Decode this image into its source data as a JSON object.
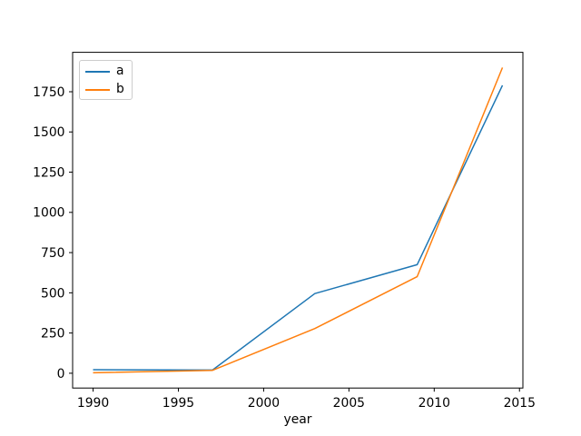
{
  "window": {
    "background": "#ffffff"
  },
  "chart_data": {
    "type": "line",
    "title": "",
    "xlabel": "year",
    "ylabel": "",
    "x": [
      1990,
      1997,
      2003,
      2009,
      2014
    ],
    "series": [
      {
        "name": "a",
        "color": "#1f77b4",
        "values": [
          22,
          20,
          495,
          675,
          1790
        ]
      },
      {
        "name": "b",
        "color": "#ff7f0e",
        "values": [
          3,
          18,
          278,
          600,
          1900
        ]
      }
    ],
    "xlim": [
      1988.8,
      2015.2
    ],
    "ylim": [
      -92,
      1995
    ],
    "xticks": [
      1990,
      1995,
      2000,
      2005,
      2010,
      2015
    ],
    "yticks": [
      0,
      250,
      500,
      750,
      1000,
      1250,
      1500,
      1750
    ],
    "grid": false,
    "legend": {
      "position": "upper-left",
      "border_color": "#cccccc",
      "background": "#ffffff"
    },
    "axes_color": "#000000",
    "text_color": "#000000",
    "line_width": 1.5
  }
}
